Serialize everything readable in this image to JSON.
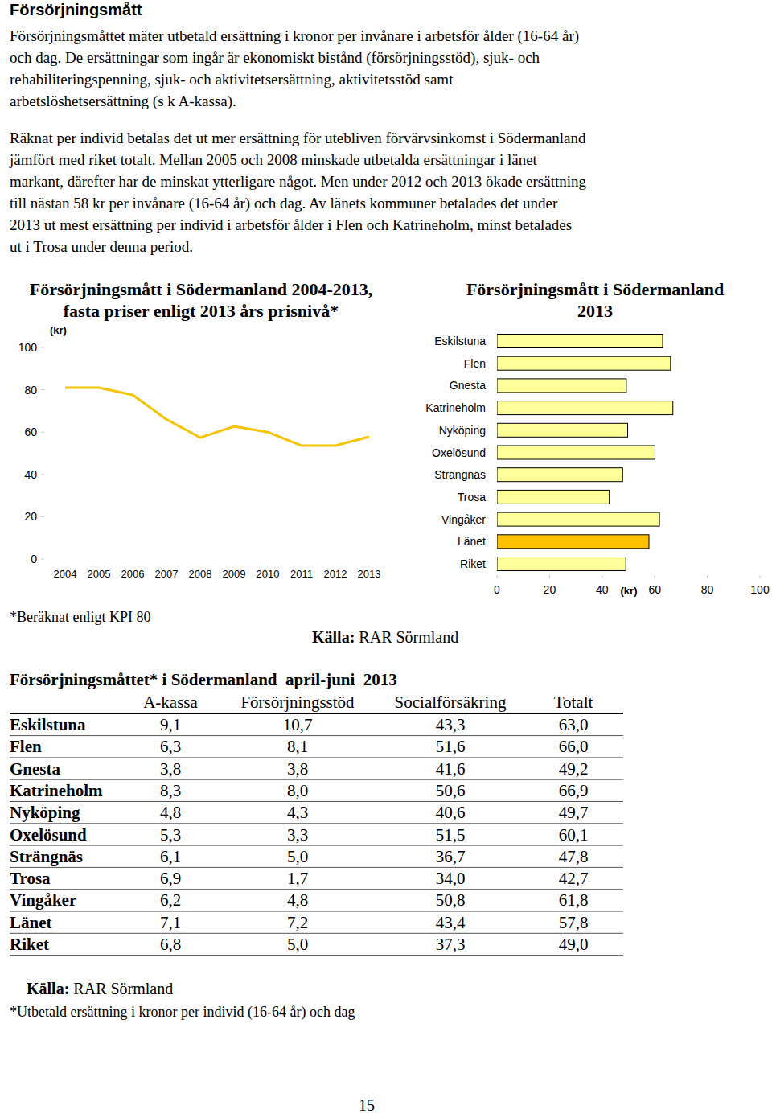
{
  "heading": "Försörjningsmått",
  "paragraphs": [
    [
      "Försörjningsmåttet mäter utbetald ersättning i kronor per invånare i arbetsför ålder (16-64 år)",
      "och dag. De ersättningar som ingår är ekonomiskt bistånd (försörjningsstöd), sjuk- och",
      "rehabiliteringspenning, sjuk- och aktivitetsersättning, aktivitetsstöd samt",
      "arbetslöshetsersättning (s k A-kassa)."
    ],
    [
      "Räknat per individ betalas det ut mer ersättning för utebliven förvärvsinkomst i Södermanland",
      "jämfört med riket totalt. Mellan 2005 och 2008 minskade utbetalda ersättningar i länet",
      "markant, därefter har de minskat ytterligare något. Men under 2012 och 2013 ökade ersättning",
      "till nästan 58 kr per invånare (16-64 år) och dag. Av länets kommuner betalades det under",
      "2013 ut mest ersättning per individ i arbetsför ålder i Flen och Katrineholm, minst betalades",
      "ut i Trosa under denna period."
    ]
  ],
  "chart_data": [
    {
      "type": "line",
      "title": "Försörjningsmått i Södermanland 2004-2013,",
      "subtitle": "fasta priser enligt 2013 års prisnivå*",
      "y_label": "(kr)",
      "categories": [
        "2004",
        "2005",
        "2006",
        "2007",
        "2008",
        "2009",
        "2010",
        "2011",
        "2012",
        "2013"
      ],
      "values": [
        81,
        81,
        77.6,
        66,
        57.4,
        62.7,
        60,
        53.6,
        53.6,
        57.8
      ],
      "color": "#f5c400",
      "ylim": [
        0,
        100
      ],
      "yticks": [
        0,
        20,
        40,
        60,
        80,
        100
      ],
      "grid": false
    },
    {
      "type": "bar",
      "orientation": "horizontal",
      "title": "Försörjningsmått i Södermanland",
      "subtitle": "2013",
      "x_label": "(kr)",
      "categories": [
        "Eskilstuna",
        "Flen",
        "Gnesta",
        "Katrineholm",
        "Nyköping",
        "Oxelösund",
        "Strängnäs",
        "Trosa",
        "Vingåker",
        "Länet",
        "Riket"
      ],
      "values": [
        63.0,
        66.0,
        49.2,
        66.9,
        49.7,
        60.1,
        47.8,
        42.7,
        61.8,
        57.8,
        49.0
      ],
      "colors": [
        "#ffff99",
        "#ffff99",
        "#ffff99",
        "#ffff99",
        "#ffff99",
        "#ffff99",
        "#ffff99",
        "#ffff99",
        "#ffff99",
        "#ffc000",
        "#ffff99"
      ],
      "xlim": [
        0,
        100
      ],
      "xticks": [
        0,
        20,
        40,
        60,
        80,
        100
      ],
      "grid": false
    }
  ],
  "chart_note": "*Beräknat enligt KPI 80",
  "chart_source": {
    "label": "Källa:",
    "text": "RAR Sörmland"
  },
  "table": {
    "title": "Försörjningsmåttet* i Södermanland  april-juni  2013",
    "columns": [
      "A-kassa",
      "Försörjningsstöd",
      "Socialförsäkring",
      "Totalt"
    ],
    "rows": [
      [
        "Eskilstuna",
        "9,1",
        "10,7",
        "43,3",
        "63,0"
      ],
      [
        "Flen",
        "6,3",
        "8,1",
        "51,6",
        "66,0"
      ],
      [
        "Gnesta",
        "3,8",
        "3,8",
        "41,6",
        "49,2"
      ],
      [
        "Katrineholm",
        "8,3",
        "8,0",
        "50,6",
        "66,9"
      ],
      [
        "Nyköping",
        "4,8",
        "4,3",
        "40,6",
        "49,7"
      ],
      [
        "Oxelösund",
        "5,3",
        "3,3",
        "51,5",
        "60,1"
      ],
      [
        "Strängnäs",
        "6,1",
        "5,0",
        "36,7",
        "47,8"
      ],
      [
        "Trosa",
        "6,9",
        "1,7",
        "34,0",
        "42,7"
      ],
      [
        "Vingåker",
        "6,2",
        "4,8",
        "50,8",
        "61,8"
      ],
      [
        "Länet",
        "7,1",
        "7,2",
        "43,4",
        "57,8"
      ],
      [
        "Riket",
        "6,8",
        "5,0",
        "37,3",
        "49,0"
      ]
    ]
  },
  "table_source": {
    "label": "Källa:",
    "text": "RAR Sörmland"
  },
  "table_footnote": "*Utbetald ersättning i kronor per individ (16-64 år) och dag",
  "page_number": "15"
}
